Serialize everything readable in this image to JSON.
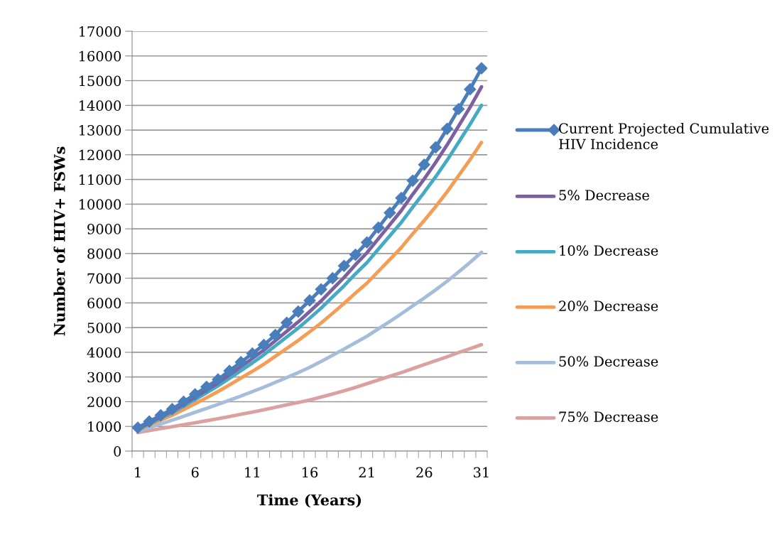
{
  "chart_data": {
    "type": "line",
    "xlabel": "Time (Years)",
    "ylabel": "Number of HIV+ FSWs",
    "categories": [
      "1",
      null,
      null,
      null,
      null,
      "6",
      null,
      null,
      null,
      null,
      "11",
      null,
      null,
      null,
      null,
      "16",
      null,
      null,
      null,
      null,
      "21",
      null,
      null,
      null,
      null,
      "26",
      null,
      null,
      null,
      null,
      "31"
    ],
    "ylim": [
      0,
      17000
    ],
    "yticks": [
      0,
      1000,
      2000,
      3000,
      4000,
      5000,
      6000,
      7000,
      8000,
      9000,
      10000,
      11000,
      12000,
      13000,
      14000,
      15000,
      16000,
      17000
    ],
    "grid": "y",
    "legend": "right",
    "line_style": "solid",
    "series": [
      {
        "name": "Current Projected Cumulative HIV Incidence",
        "color": "#4a7ebb",
        "marker": "diamond",
        "values": [
          950,
          1200,
          1450,
          1700,
          2000,
          2300,
          2600,
          2900,
          3250,
          3600,
          3950,
          4300,
          4700,
          5200,
          5650,
          6100,
          6550,
          7000,
          7500,
          7950,
          8450,
          9050,
          9650,
          10250,
          10950,
          11600,
          12300,
          13050,
          13850,
          14650,
          15500
        ]
      },
      {
        "name": "5% Decrease",
        "color": "#7d60a0",
        "values": [
          900,
          1150,
          1390,
          1630,
          1900,
          2190,
          2470,
          2760,
          3090,
          3420,
          3750,
          4090,
          4470,
          4850,
          5230,
          5650,
          6080,
          6560,
          7030,
          7550,
          8030,
          8600,
          9170,
          9740,
          10400,
          11020,
          11690,
          12400,
          13160,
          13920,
          14750
        ]
      },
      {
        "name": "10% Decrease",
        "color": "#46aac5",
        "values": [
          870,
          1100,
          1330,
          1560,
          1820,
          2090,
          2360,
          2640,
          2950,
          3260,
          3570,
          3900,
          4260,
          4620,
          4980,
          5380,
          5790,
          6240,
          6690,
          7180,
          7630,
          8180,
          8720,
          9260,
          9880,
          10480,
          11110,
          11780,
          12500,
          13230,
          14000
        ]
      },
      {
        "name": "20% Decrease",
        "color": "#f59d56",
        "values": [
          850,
          1050,
          1250,
          1450,
          1680,
          1920,
          2160,
          2410,
          2680,
          2960,
          3230,
          3520,
          3840,
          4160,
          4480,
          4830,
          5190,
          5580,
          5980,
          6400,
          6800,
          7280,
          7760,
          8240,
          8800,
          9340,
          9900,
          10500,
          11150,
          11800,
          12500
        ]
      },
      {
        "name": "50% Decrease",
        "color": "#a5bddb",
        "values": [
          800,
          950,
          1100,
          1250,
          1410,
          1570,
          1730,
          1890,
          2060,
          2230,
          2410,
          2590,
          2780,
          2980,
          3180,
          3390,
          3630,
          3880,
          4130,
          4390,
          4650,
          4950,
          5250,
          5560,
          5880,
          6200,
          6530,
          6880,
          7250,
          7640,
          8050
        ]
      },
      {
        "name": "75% Decrease",
        "color": "#dba0a0",
        "values": [
          750,
          830,
          910,
          990,
          1070,
          1150,
          1230,
          1310,
          1400,
          1490,
          1580,
          1670,
          1770,
          1870,
          1970,
          2070,
          2190,
          2310,
          2440,
          2580,
          2730,
          2880,
          3030,
          3180,
          3340,
          3500,
          3660,
          3820,
          3990,
          4150,
          4310
        ]
      }
    ]
  }
}
